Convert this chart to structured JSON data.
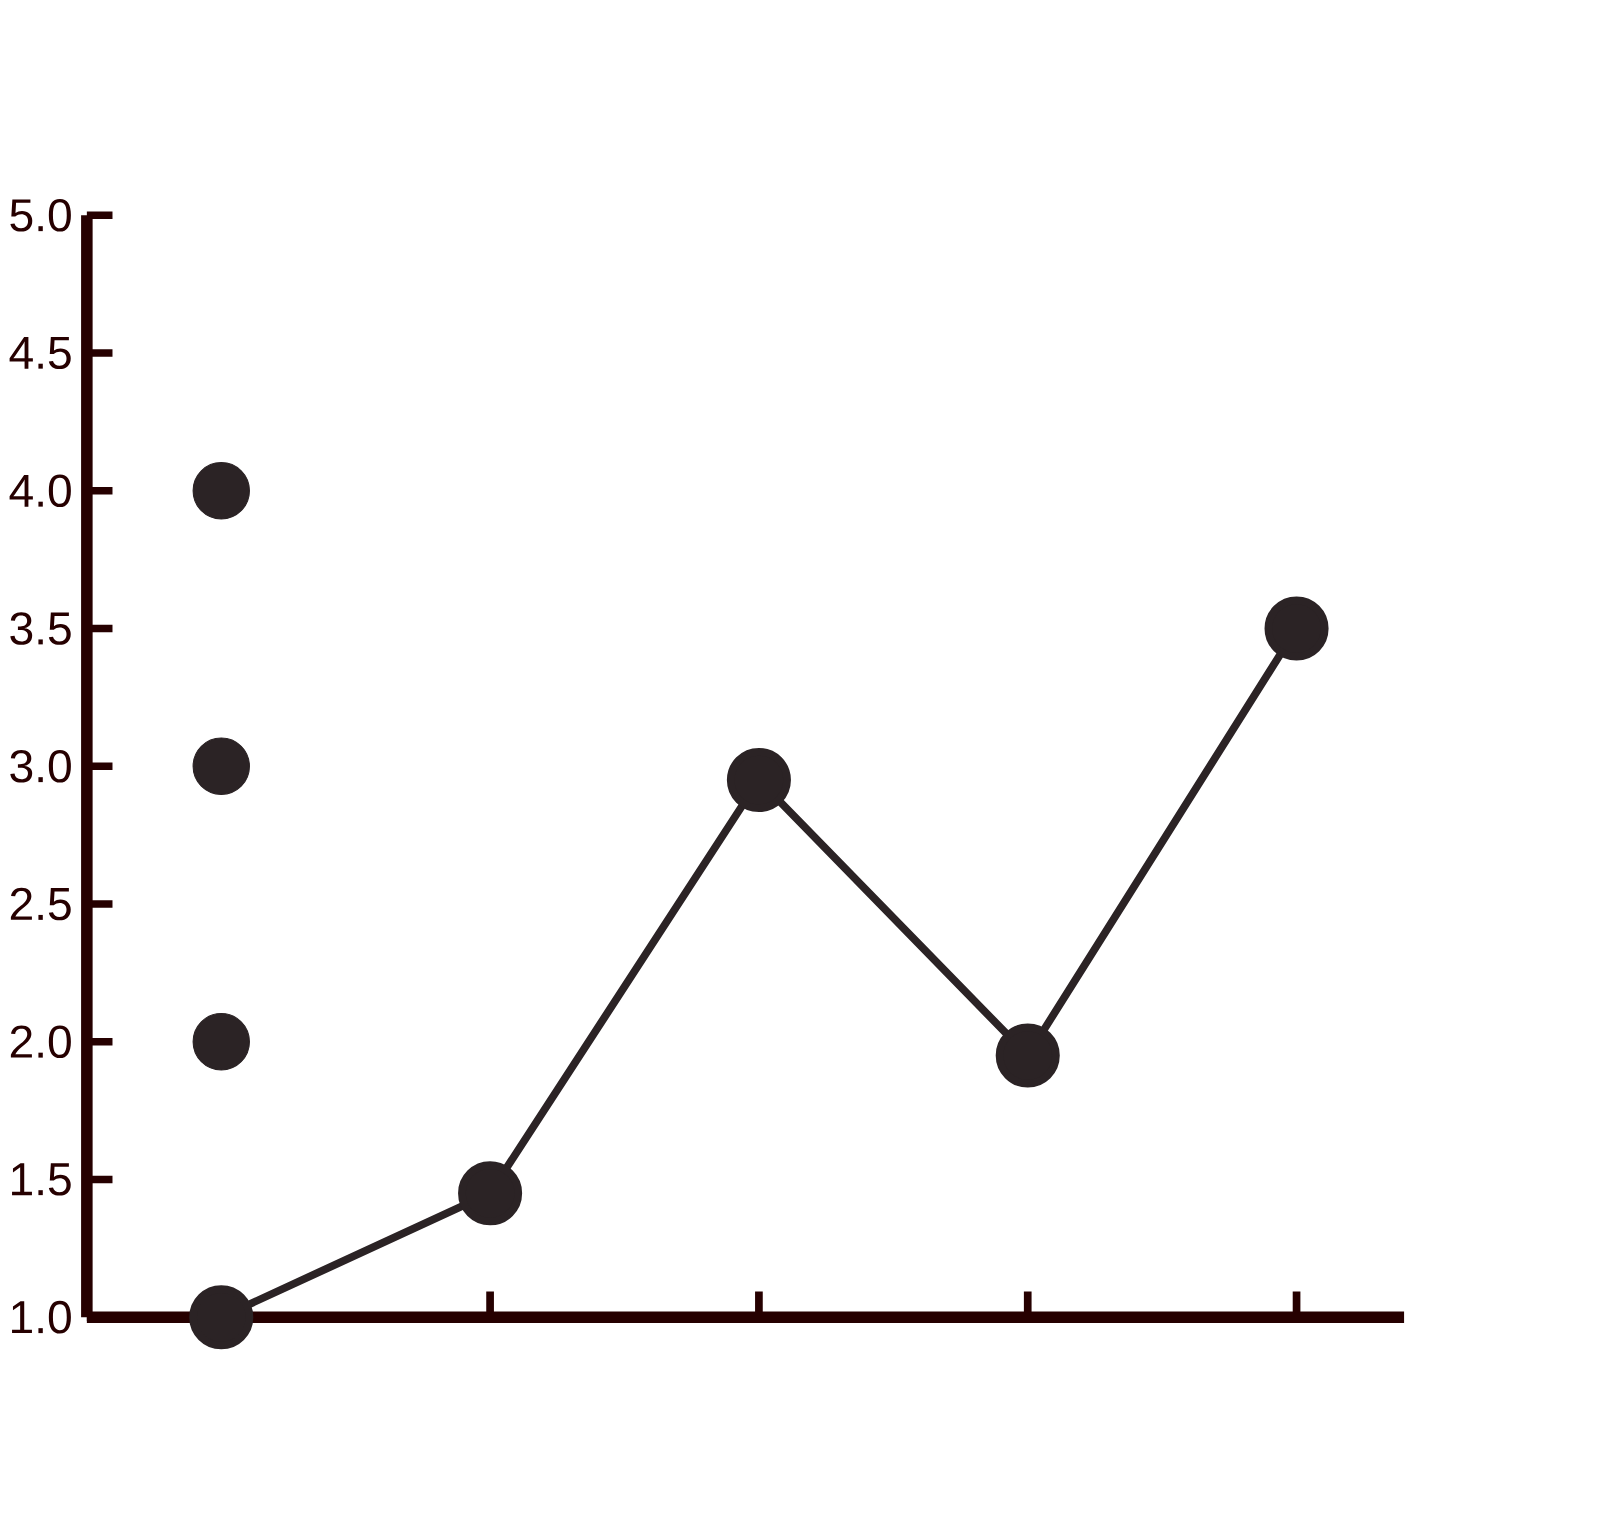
{
  "chart_data": {
    "type": "line",
    "categories": [
      null,
      null,
      null,
      null,
      null
    ],
    "ylim": [
      1,
      5
    ],
    "yticks": [
      {
        "value": 1,
        "label": "1.0"
      },
      {
        "value": 1.5,
        "label": "1.5"
      },
      {
        "value": 2,
        "label": "2.0"
      },
      {
        "value": 2.5,
        "label": "2.5"
      },
      {
        "value": 3,
        "label": "3.0"
      },
      {
        "value": 3.5,
        "label": "3.5"
      },
      {
        "value": 4,
        "label": "4.0"
      },
      {
        "value": 4.5,
        "label": "4.5"
      },
      {
        "value": 5,
        "label": "5.0"
      }
    ],
    "marker": "circle",
    "series": [
      {
        "color": "#2b2325",
        "values": [
          1,
          1.45,
          2.95,
          1.95,
          3.5
        ]
      },
      {
        "type": "scatter",
        "color": "#2b2325",
        "values": [
          2,
          null,
          null,
          null,
          null
        ]
      },
      {
        "type": "scatter",
        "color": "#2b2325",
        "values": [
          3,
          null,
          null,
          null,
          null
        ]
      },
      {
        "type": "scatter",
        "color": "#2b2325",
        "values": [
          4,
          null,
          null,
          null,
          null
        ]
      }
    ]
  }
}
